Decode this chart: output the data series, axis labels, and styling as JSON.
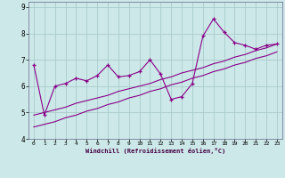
{
  "xlabel": "Windchill (Refroidissement éolien,°C)",
  "bg_color": "#cce8e8",
  "grid_color": "#aacccc",
  "line_color": "#880088",
  "x_data": [
    0,
    1,
    2,
    3,
    4,
    5,
    6,
    7,
    8,
    9,
    10,
    11,
    12,
    13,
    14,
    15,
    16,
    17,
    18,
    19,
    20,
    21,
    22,
    23
  ],
  "y_main": [
    6.8,
    4.9,
    6.0,
    6.1,
    6.3,
    6.2,
    6.4,
    6.8,
    6.35,
    6.4,
    6.55,
    7.0,
    6.45,
    5.5,
    5.6,
    6.1,
    7.9,
    8.55,
    8.05,
    7.65,
    7.55,
    7.4,
    7.55,
    7.6
  ],
  "y_trend1": [
    4.9,
    5.0,
    5.1,
    5.2,
    5.35,
    5.45,
    5.55,
    5.65,
    5.8,
    5.9,
    6.0,
    6.1,
    6.25,
    6.35,
    6.5,
    6.6,
    6.7,
    6.85,
    6.95,
    7.1,
    7.2,
    7.35,
    7.45,
    7.6
  ],
  "y_trend2": [
    4.45,
    4.55,
    4.65,
    4.8,
    4.9,
    5.05,
    5.15,
    5.3,
    5.4,
    5.55,
    5.65,
    5.8,
    5.9,
    6.05,
    6.15,
    6.3,
    6.4,
    6.55,
    6.65,
    6.8,
    6.9,
    7.05,
    7.15,
    7.3
  ],
  "ylim": [
    4.0,
    9.2
  ],
  "yticks": [
    4,
    5,
    6,
    7,
    8,
    9
  ],
  "xlim": [
    -0.5,
    23.5
  ],
  "xticks": [
    0,
    1,
    2,
    3,
    4,
    5,
    6,
    7,
    8,
    9,
    10,
    11,
    12,
    13,
    14,
    15,
    16,
    17,
    18,
    19,
    20,
    21,
    22,
    23
  ]
}
